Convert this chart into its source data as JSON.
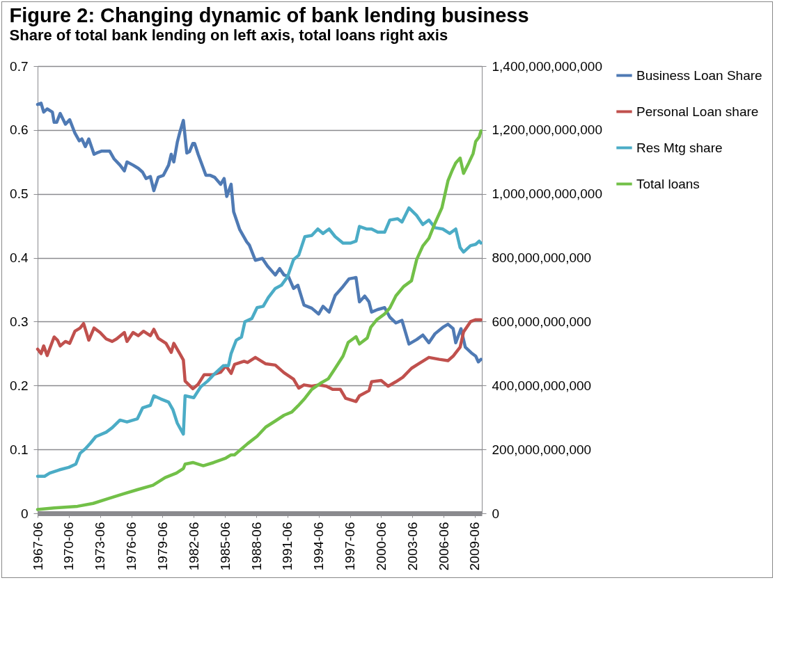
{
  "chart_data": {
    "type": "line",
    "title": "Figure 2: Changing dynamic of bank lending business",
    "subtitle": "Share of total bank lending on left axis, total loans right axis",
    "grid": "y",
    "legend": "right",
    "line_style": "solid",
    "xlim": [
      "1967-06",
      "2010-02"
    ],
    "xticks": [
      "1967-06",
      "1970-06",
      "1973-06",
      "1976-06",
      "1979-06",
      "1982-06",
      "1985-06",
      "1988-06",
      "1991-06",
      "1994-06",
      "1997-06",
      "2000-06",
      "2003-06",
      "2006-06",
      "2009-06"
    ],
    "ylim": [
      0,
      0.7
    ],
    "yticks": [
      0,
      0.1,
      0.2,
      0.3,
      0.4,
      0.5,
      0.6,
      0.7
    ],
    "y2lim": [
      0,
      1400000000000
    ],
    "y2ticks": [
      0,
      {
        "value": 200000000000,
        "label": "200,000,000,000"
      },
      {
        "value": 400000000000,
        "label": "400,000,000,000"
      },
      {
        "value": 600000000000,
        "label": "600,000,000,000"
      },
      {
        "value": 800000000000,
        "label": "800,000,000,000"
      },
      {
        "value": 1000000000000,
        "label": "1,000,000,000,000"
      },
      {
        "value": 1200000000000,
        "label": "1,200,000,000,000"
      },
      {
        "value": 1400000000000,
        "label": "1,400,000,000,000"
      }
    ],
    "series": [
      {
        "name": "Business Loan Share",
        "color": "#4f7ab4",
        "x": [
          "1967-06",
          "1967-10",
          "1968-01",
          "1968-05",
          "1968-11",
          "1969-01",
          "1969-04",
          "1969-08",
          "1970-02",
          "1970-07",
          "1971-01",
          "1971-06",
          "1971-09",
          "1972-01",
          "1972-05",
          "1972-11",
          "1973-02",
          "1973-08",
          "1974-05",
          "1974-10",
          "1975-05",
          "1975-10",
          "1976-01",
          "1976-08",
          "1977-02",
          "1977-07",
          "1977-11",
          "1978-04",
          "1978-08",
          "1979-01",
          "1979-07",
          "1980-01",
          "1980-04",
          "1980-07",
          "1980-11",
          "1981-02",
          "1981-06",
          "1981-10",
          "1982-01",
          "1982-05",
          "1982-07",
          "1982-11",
          "1983-08",
          "1984-01",
          "1984-06",
          "1985-01",
          "1985-05",
          "1985-08",
          "1986-01",
          "1986-04",
          "1986-11",
          "1987-07",
          "1987-10",
          "1988-05",
          "1989-01",
          "1989-07",
          "1990-04",
          "1990-09",
          "1991-02",
          "1991-07",
          "1992-01",
          "1992-06",
          "1993-01",
          "1993-10",
          "1994-06",
          "1994-11",
          "1995-06",
          "1996-01",
          "1996-10",
          "1997-05",
          "1998-01",
          "1998-05",
          "1998-11",
          "1999-04",
          "1999-07",
          "2000-02",
          "2000-10",
          "2001-04",
          "2001-11",
          "2002-06",
          "2003-02",
          "2003-11",
          "2004-06",
          "2005-01",
          "2005-08",
          "2006-05",
          "2006-11",
          "2007-05",
          "2007-08",
          "2008-02",
          "2008-07",
          "2009-02",
          "2009-07",
          "2009-10",
          "2010-01"
        ],
        "values": [
          0.64,
          0.642,
          0.628,
          0.633,
          0.628,
          0.612,
          0.612,
          0.626,
          0.609,
          0.616,
          0.595,
          0.583,
          0.586,
          0.574,
          0.586,
          0.562,
          0.564,
          0.567,
          0.567,
          0.555,
          0.545,
          0.536,
          0.55,
          0.545,
          0.54,
          0.534,
          0.524,
          0.527,
          0.505,
          0.526,
          0.529,
          0.545,
          0.562,
          0.55,
          0.581,
          0.597,
          0.615,
          0.564,
          0.566,
          0.579,
          0.579,
          0.562,
          0.529,
          0.529,
          0.526,
          0.515,
          0.524,
          0.496,
          0.515,
          0.472,
          0.444,
          0.425,
          0.42,
          0.396,
          0.399,
          0.387,
          0.373,
          0.383,
          0.373,
          0.371,
          0.352,
          0.357,
          0.326,
          0.321,
          0.312,
          0.324,
          0.315,
          0.341,
          0.355,
          0.367,
          0.369,
          0.331,
          0.34,
          0.331,
          0.315,
          0.319,
          0.322,
          0.307,
          0.298,
          0.302,
          0.265,
          0.272,
          0.279,
          0.267,
          0.281,
          0.291,
          0.296,
          0.289,
          0.267,
          0.289,
          0.26,
          0.251,
          0.246,
          0.237,
          0.241
        ]
      },
      {
        "name": "Personal Loan share",
        "color": "#c0504d",
        "x": [
          "1967-06",
          "1967-10",
          "1968-01",
          "1968-05",
          "1969-01",
          "1969-05",
          "1969-08",
          "1970-02",
          "1970-07",
          "1971-01",
          "1971-07",
          "1971-11",
          "1972-05",
          "1972-11",
          "1973-06",
          "1974-01",
          "1974-08",
          "1975-01",
          "1975-10",
          "1976-01",
          "1976-08",
          "1977-02",
          "1977-08",
          "1978-04",
          "1978-08",
          "1979-01",
          "1979-10",
          "1980-04",
          "1980-07",
          "1981-01",
          "1981-06",
          "1981-08",
          "1982-05",
          "1982-11",
          "1983-06",
          "1984-04",
          "1985-01",
          "1985-07",
          "1986-01",
          "1986-05",
          "1987-04",
          "1987-08",
          "1988-05",
          "1989-05",
          "1990-04",
          "1991-02",
          "1992-01",
          "1992-07",
          "1993-01",
          "1993-10",
          "1994-06",
          "1995-03",
          "1995-10",
          "1996-07",
          "1997-01",
          "1998-01",
          "1998-05",
          "1999-04",
          "1999-07",
          "2000-06",
          "2001-02",
          "2001-11",
          "2002-07",
          "2003-05",
          "2004-01",
          "2005-01",
          "2006-01",
          "2006-11",
          "2007-05",
          "2008-01",
          "2008-05",
          "2009-01",
          "2009-07",
          "2010-01"
        ],
        "values": [
          0.257,
          0.25,
          0.262,
          0.247,
          0.276,
          0.271,
          0.262,
          0.269,
          0.266,
          0.285,
          0.29,
          0.297,
          0.271,
          0.29,
          0.283,
          0.273,
          0.269,
          0.273,
          0.283,
          0.269,
          0.283,
          0.278,
          0.285,
          0.278,
          0.288,
          0.274,
          0.266,
          0.252,
          0.266,
          0.252,
          0.24,
          0.207,
          0.195,
          0.202,
          0.217,
          0.217,
          0.221,
          0.231,
          0.219,
          0.233,
          0.238,
          0.236,
          0.244,
          0.234,
          0.232,
          0.22,
          0.21,
          0.196,
          0.201,
          0.199,
          0.201,
          0.199,
          0.194,
          0.194,
          0.18,
          0.175,
          0.184,
          0.192,
          0.206,
          0.208,
          0.199,
          0.206,
          0.213,
          0.227,
          0.234,
          0.244,
          0.241,
          0.239,
          0.246,
          0.26,
          0.284,
          0.3,
          0.303,
          0.303
        ]
      },
      {
        "name": "Res Mtg share",
        "color": "#4bacc6",
        "x": [
          "1967-06",
          "1968-02",
          "1968-08",
          "1969-07",
          "1970-06",
          "1971-02",
          "1971-07",
          "1972-01",
          "1972-07",
          "1973-01",
          "1974-01",
          "1974-08",
          "1975-05",
          "1976-01",
          "1977-01",
          "1977-07",
          "1978-04",
          "1978-08",
          "1979-04",
          "1980-01",
          "1980-06",
          "1980-11",
          "1981-06",
          "1981-08",
          "1982-06",
          "1983-02",
          "1983-10",
          "1984-05",
          "1985-04",
          "1985-10",
          "1986-01",
          "1986-07",
          "1987-01",
          "1987-05",
          "1988-01",
          "1988-07",
          "1989-02",
          "1989-08",
          "1990-04",
          "1990-11",
          "1991-06",
          "1992-01",
          "1992-07",
          "1993-02",
          "1993-10",
          "1994-05",
          "1994-11",
          "1995-06",
          "1996-01",
          "1996-10",
          "1997-07",
          "1998-01",
          "1998-05",
          "1999-01",
          "1999-07",
          "2000-02",
          "2000-10",
          "2001-04",
          "2002-01",
          "2002-06",
          "2003-02",
          "2003-11",
          "2004-06",
          "2005-01",
          "2005-08",
          "2006-05",
          "2007-01",
          "2007-08",
          "2008-01",
          "2008-05",
          "2009-01",
          "2009-07",
          "2009-11",
          "2010-01"
        ],
        "values": [
          0.058,
          0.058,
          0.063,
          0.068,
          0.072,
          0.077,
          0.094,
          0.101,
          0.11,
          0.12,
          0.127,
          0.134,
          0.146,
          0.143,
          0.148,
          0.165,
          0.169,
          0.184,
          0.179,
          0.174,
          0.162,
          0.141,
          0.124,
          0.184,
          0.181,
          0.198,
          0.207,
          0.217,
          0.231,
          0.231,
          0.25,
          0.271,
          0.276,
          0.3,
          0.305,
          0.322,
          0.324,
          0.338,
          0.352,
          0.357,
          0.37,
          0.397,
          0.404,
          0.433,
          0.435,
          0.445,
          0.438,
          0.445,
          0.433,
          0.423,
          0.423,
          0.426,
          0.449,
          0.445,
          0.445,
          0.44,
          0.44,
          0.459,
          0.461,
          0.456,
          0.478,
          0.466,
          0.452,
          0.459,
          0.447,
          0.445,
          0.438,
          0.445,
          0.416,
          0.409,
          0.419,
          0.421,
          0.426,
          0.423
        ]
      },
      {
        "name": "Total loans",
        "color": "#72c048",
        "axis": "y2",
        "x": [
          "1967-06",
          "1969-01",
          "1971-04",
          "1972-10",
          "1974-02",
          "1975-08",
          "1977-01",
          "1978-07",
          "1979-09",
          "1980-10",
          "1981-06",
          "1981-08",
          "1982-05",
          "1983-05",
          "1984-05",
          "1985-07",
          "1986-01",
          "1986-05",
          "1987-08",
          "1988-07",
          "1989-05",
          "1990-04",
          "1991-02",
          "1991-11",
          "1992-06",
          "1993-02",
          "1993-10",
          "1994-08",
          "1995-05",
          "1996-01",
          "1996-10",
          "1997-04",
          "1998-01",
          "1998-05",
          "1999-02",
          "1999-06",
          "2000-01",
          "2000-10",
          "2001-04",
          "2001-11",
          "2002-08",
          "2003-05",
          "2003-11",
          "2004-06",
          "2005-01",
          "2005-08",
          "2006-04",
          "2006-11",
          "2007-04",
          "2007-08",
          "2008-01",
          "2008-05",
          "2008-11",
          "2009-04",
          "2009-07",
          "2009-11",
          "2010-01"
        ],
        "values": [
          12000000000,
          17000000000,
          22000000000,
          31000000000,
          45000000000,
          60000000000,
          74000000000,
          88000000000,
          112000000000,
          126000000000,
          140000000000,
          154000000000,
          159000000000,
          149000000000,
          159000000000,
          173000000000,
          183000000000,
          183000000000,
          218000000000,
          241000000000,
          270000000000,
          289000000000,
          307000000000,
          317000000000,
          336000000000,
          360000000000,
          388000000000,
          407000000000,
          421000000000,
          454000000000,
          492000000000,
          535000000000,
          553000000000,
          530000000000,
          549000000000,
          582000000000,
          606000000000,
          624000000000,
          643000000000,
          681000000000,
          710000000000,
          728000000000,
          795000000000,
          837000000000,
          861000000000,
          908000000000,
          956000000000,
          1041000000000,
          1074000000000,
          1097000000000,
          1112000000000,
          1064000000000,
          1097000000000,
          1126000000000,
          1164000000000,
          1178000000000,
          1197000000000
        ]
      }
    ]
  }
}
